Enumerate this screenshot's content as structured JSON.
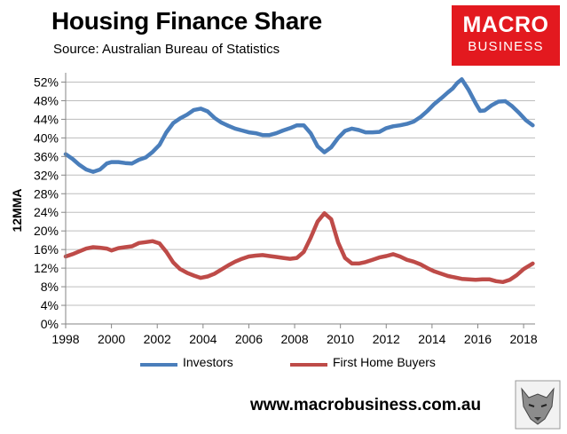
{
  "header": {
    "title": "Housing Finance Share",
    "subtitle": "Source: Australian Bureau of Statistics"
  },
  "logo": {
    "line1": "MACRO",
    "line2": "BUSINESS",
    "color": "#e3191f"
  },
  "footer": {
    "website": "www.macrobusiness.com.au"
  },
  "chart_data": {
    "type": "line",
    "title": "Housing Finance Share",
    "ylabel": "12MMA",
    "xlim": [
      1998,
      2018.5
    ],
    "ylim": [
      0,
      54
    ],
    "yticks": [
      0,
      4,
      8,
      12,
      16,
      20,
      24,
      28,
      32,
      36,
      40,
      44,
      48,
      52
    ],
    "ytick_labels": [
      "0%",
      "4%",
      "8%",
      "12%",
      "16%",
      "20%",
      "24%",
      "28%",
      "32%",
      "36%",
      "40%",
      "44%",
      "48%",
      "52%"
    ],
    "xticks": [
      1998,
      2000,
      2002,
      2004,
      2006,
      2008,
      2010,
      2012,
      2014,
      2016,
      2018
    ],
    "xtick_labels": [
      "1998",
      "2000",
      "2002",
      "2004",
      "2006",
      "2008",
      "2010",
      "2012",
      "2014",
      "2016",
      "2018"
    ],
    "grid": "horizontal",
    "legend": "bottom",
    "series": [
      {
        "name": "Investors",
        "color": "#4a7ebb",
        "x": [
          1998.0,
          1998.3,
          1998.6,
          1998.9,
          1999.2,
          1999.5,
          1999.8,
          2000.0,
          2000.3,
          2000.6,
          2000.9,
          2001.2,
          2001.5,
          2001.8,
          2002.1,
          2002.4,
          2002.7,
          2003.0,
          2003.3,
          2003.6,
          2003.9,
          2004.2,
          2004.5,
          2004.8,
          2005.1,
          2005.4,
          2005.7,
          2006.0,
          2006.3,
          2006.6,
          2006.9,
          2007.2,
          2007.5,
          2007.8,
          2008.1,
          2008.4,
          2008.7,
          2009.0,
          2009.3,
          2009.6,
          2009.9,
          2010.2,
          2010.5,
          2010.8,
          2011.1,
          2011.4,
          2011.7,
          2012.0,
          2012.3,
          2012.6,
          2012.9,
          2013.2,
          2013.5,
          2013.8,
          2014.1,
          2014.4,
          2014.7,
          2014.9,
          2015.1,
          2015.3,
          2015.6,
          2015.9,
          2016.1,
          2016.3,
          2016.6,
          2016.9,
          2017.2,
          2017.5,
          2017.8,
          2018.1,
          2018.4
        ],
        "values": [
          36.5,
          35.5,
          34.2,
          33.2,
          32.7,
          33.2,
          34.5,
          34.8,
          34.8,
          34.6,
          34.5,
          35.3,
          35.8,
          37.0,
          38.5,
          41.2,
          43.2,
          44.2,
          45.0,
          46.0,
          46.3,
          45.7,
          44.3,
          43.3,
          42.6,
          42.0,
          41.6,
          41.2,
          41.0,
          40.6,
          40.6,
          41.0,
          41.6,
          42.1,
          42.7,
          42.7,
          41.0,
          38.2,
          36.9,
          38.0,
          40.0,
          41.5,
          42.0,
          41.7,
          41.2,
          41.2,
          41.3,
          42.1,
          42.5,
          42.7,
          43.0,
          43.5,
          44.5,
          45.8,
          47.3,
          48.5,
          49.8,
          50.6,
          51.8,
          52.6,
          50.3,
          47.5,
          45.8,
          45.9,
          47.0,
          47.8,
          47.9,
          46.8,
          45.4,
          43.8,
          42.7
        ]
      },
      {
        "name": "First Home Buyers",
        "color": "#be4b48",
        "x": [
          1998.0,
          1998.3,
          1998.6,
          1998.9,
          1999.2,
          1999.5,
          1999.8,
          2000.0,
          2000.3,
          2000.6,
          2000.9,
          2001.2,
          2001.5,
          2001.8,
          2002.1,
          2002.4,
          2002.7,
          2003.0,
          2003.3,
          2003.6,
          2003.9,
          2004.2,
          2004.5,
          2004.8,
          2005.1,
          2005.4,
          2005.7,
          2006.0,
          2006.3,
          2006.6,
          2006.9,
          2007.2,
          2007.5,
          2007.8,
          2008.1,
          2008.4,
          2008.7,
          2009.0,
          2009.3,
          2009.6,
          2009.9,
          2010.2,
          2010.5,
          2010.8,
          2011.1,
          2011.4,
          2011.7,
          2012.0,
          2012.3,
          2012.6,
          2012.9,
          2013.2,
          2013.5,
          2013.8,
          2014.1,
          2014.4,
          2014.7,
          2015.0,
          2015.3,
          2015.6,
          2015.9,
          2016.2,
          2016.5,
          2016.8,
          2017.1,
          2017.4,
          2017.7,
          2018.0,
          2018.4
        ],
        "values": [
          14.5,
          15.0,
          15.6,
          16.2,
          16.5,
          16.4,
          16.2,
          15.8,
          16.3,
          16.5,
          16.7,
          17.4,
          17.6,
          17.8,
          17.3,
          15.5,
          13.2,
          11.8,
          11.0,
          10.4,
          9.9,
          10.2,
          10.8,
          11.7,
          12.6,
          13.4,
          14.0,
          14.5,
          14.7,
          14.8,
          14.6,
          14.4,
          14.2,
          14.0,
          14.2,
          15.5,
          18.5,
          22.0,
          23.8,
          22.5,
          17.5,
          14.2,
          13.0,
          13.0,
          13.3,
          13.8,
          14.3,
          14.6,
          15.0,
          14.5,
          13.8,
          13.4,
          12.8,
          12.0,
          11.3,
          10.8,
          10.3,
          10.0,
          9.7,
          9.6,
          9.5,
          9.6,
          9.6,
          9.2,
          9.0,
          9.5,
          10.5,
          11.8,
          13.0
        ]
      }
    ]
  }
}
